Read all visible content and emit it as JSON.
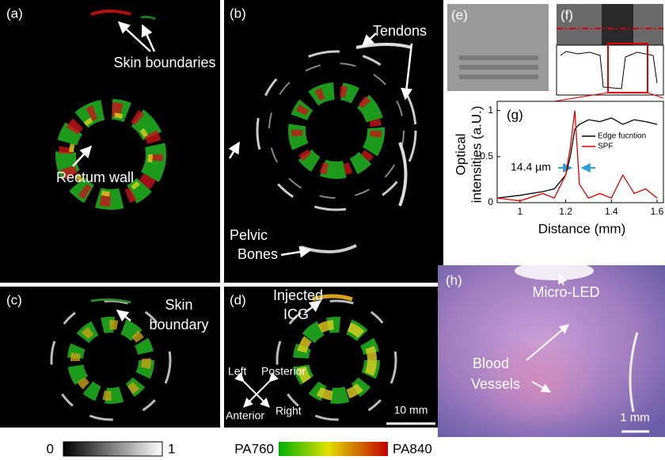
{
  "panels": {
    "a": {
      "label": "(a)",
      "skin": "Skin boundaries",
      "rectum": "Rectum wall"
    },
    "b": {
      "label": "(b)",
      "tendons": "Tendons",
      "bones": [
        "Pelvic",
        "Bones"
      ]
    },
    "c": {
      "label": "(c)",
      "skin": [
        "Skin",
        "boundary"
      ]
    },
    "d": {
      "label": "(d)",
      "icg": [
        "Injected",
        "ICG"
      ],
      "orientation": [
        "Left",
        "Posterior",
        "Anterior",
        "Right"
      ],
      "scale": "10 mm"
    },
    "e": {
      "label": "(e)"
    },
    "f": {
      "label": "(f)"
    },
    "h": {
      "label": "(h)",
      "led": "Micro-LED",
      "vessels": [
        "Blood",
        "Vessels"
      ],
      "scale": "1 mm"
    }
  },
  "colorbars": {
    "gray": [
      "0",
      "1"
    ],
    "pa": [
      "PA760",
      "PA840"
    ]
  },
  "plot": {
    "label": "(g)",
    "annotation": "14.4 µm",
    "x_label": "Distance (mm)",
    "y_label": [
      "Optical",
      "intensities (a.U.)"
    ],
    "x": [
      0.9,
      1.0,
      1.1,
      1.15,
      1.2,
      1.22,
      1.24,
      1.26,
      1.3,
      1.35,
      1.4,
      1.45,
      1.5,
      1.55,
      1.6
    ],
    "series": [
      {
        "name": "Edge fucntion",
        "color": "#000000",
        "values": [
          0.05,
          0.08,
          0.12,
          0.15,
          0.3,
          0.5,
          0.8,
          0.85,
          0.9,
          0.88,
          0.92,
          0.85,
          0.9,
          0.88,
          0.85
        ]
      },
      {
        "name": "SPF",
        "color": "#e00000",
        "values": [
          0.05,
          0.02,
          0.1,
          0.05,
          0.3,
          0.6,
          1.0,
          0.2,
          0.05,
          0.1,
          0.05,
          0.3,
          0.1,
          0.15,
          0.05
        ]
      }
    ],
    "xlim": [
      0.9,
      1.6
    ],
    "ylim": [
      0,
      1.1
    ],
    "xticks": [
      1,
      1.2,
      1.4,
      1.6
    ],
    "yticks": [
      0,
      0.5,
      1
    ]
  }
}
